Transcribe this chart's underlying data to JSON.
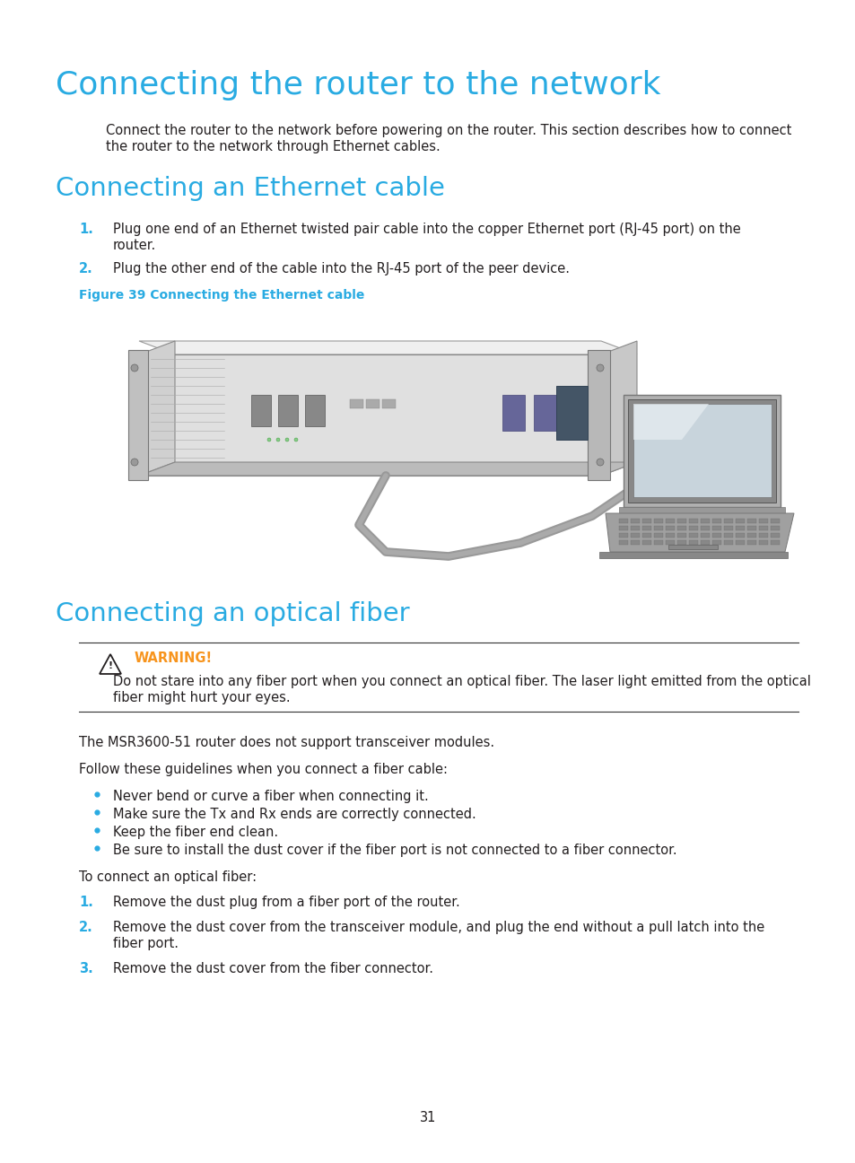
{
  "title1": "Connecting the router to the network",
  "title2": "Connecting an Ethernet cable",
  "title3": "Connecting an optical fiber",
  "heading_color": "#29ABE2",
  "body_color": "#231F20",
  "bullet_color": "#29ABE2",
  "number_color": "#29ABE2",
  "warning_color": "#F7941D",
  "bg_color": "#FFFFFF",
  "para1_line1": "Connect the router to the network before powering on the router. This section describes how to connect",
  "para1_line2": "the router to the network through Ethernet cables.",
  "step1_1_line1": "Plug one end of an Ethernet twisted pair cable into the copper Ethernet port (RJ-45 port) on the",
  "step1_1_line2": "router.",
  "step1_2": "Plug the other end of the cable into the RJ-45 port of the peer device.",
  "fig_caption": "Figure 39 Connecting the Ethernet cable",
  "warning_title": "WARNING!",
  "warning_line1": "Do not stare into any fiber port when you connect an optical fiber. The laser light emitted from the optical",
  "warning_line2": "fiber might hurt your eyes.",
  "msr_note": "The MSR3600-51 router does not support transceiver modules.",
  "guidelines_intro": "Follow these guidelines when you connect a fiber cable:",
  "bullets": [
    "Never bend or curve a fiber when connecting it.",
    "Make sure the Tx and Rx ends are correctly connected.",
    "Keep the fiber end clean.",
    "Be sure to install the dust cover if the fiber port is not connected to a fiber connector."
  ],
  "to_connect": "To connect an optical fiber:",
  "step2_1": "Remove the dust plug from a fiber port of the router.",
  "step2_2_line1": "Remove the dust cover from the transceiver module, and plug the end without a pull latch into the",
  "step2_2_line2": "fiber port.",
  "step2_3": "Remove the dust cover from the fiber connector.",
  "page_number": "31",
  "font_size_h1": 26,
  "font_size_h2": 21,
  "font_size_body": 10.5,
  "font_size_caption": 10.0
}
